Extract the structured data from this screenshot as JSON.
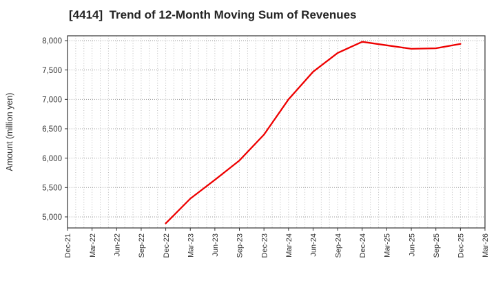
{
  "header": {
    "title": "[4414]  Trend of 12-Month Moving Sum of Revenues"
  },
  "chart_data": {
    "type": "line",
    "title": "[4414]  Trend of 12-Month Moving Sum of Revenues",
    "xlabel": "",
    "ylabel": "Amount (million yen)",
    "categories": [
      "Dec-21",
      "Mar-22",
      "Jun-22",
      "Sep-22",
      "Dec-22",
      "Mar-23",
      "Jun-23",
      "Sep-23",
      "Dec-23",
      "Mar-24",
      "Jun-24",
      "Sep-24",
      "Dec-24",
      "Mar-25",
      "Jun-25",
      "Sep-25",
      "Dec-25",
      "Mar-26"
    ],
    "series": [
      {
        "name": "12-Month Moving Sum of Revenues",
        "color": "#ee0000",
        "values": [
          null,
          null,
          null,
          null,
          4890,
          5310,
          5630,
          5960,
          6400,
          7000,
          7470,
          7790,
          7980,
          7920,
          7860,
          7870,
          7945,
          null
        ]
      }
    ],
    "yticks": [
      5000,
      5500,
      6000,
      6500,
      7000,
      7500,
      8000
    ],
    "ylim": [
      4812,
      8082
    ],
    "months_per_category": 3,
    "grid": {
      "horizontal": "every-ytick",
      "vertical": "monthly",
      "style": "dotted",
      "on": true
    },
    "legend": "none",
    "colors": {
      "line": "#ee0000",
      "frame": "#333333",
      "grid_h": "#999999",
      "grid_v": "#bbbbbb",
      "tick_text": "#333333",
      "title_text": "#242424"
    }
  }
}
